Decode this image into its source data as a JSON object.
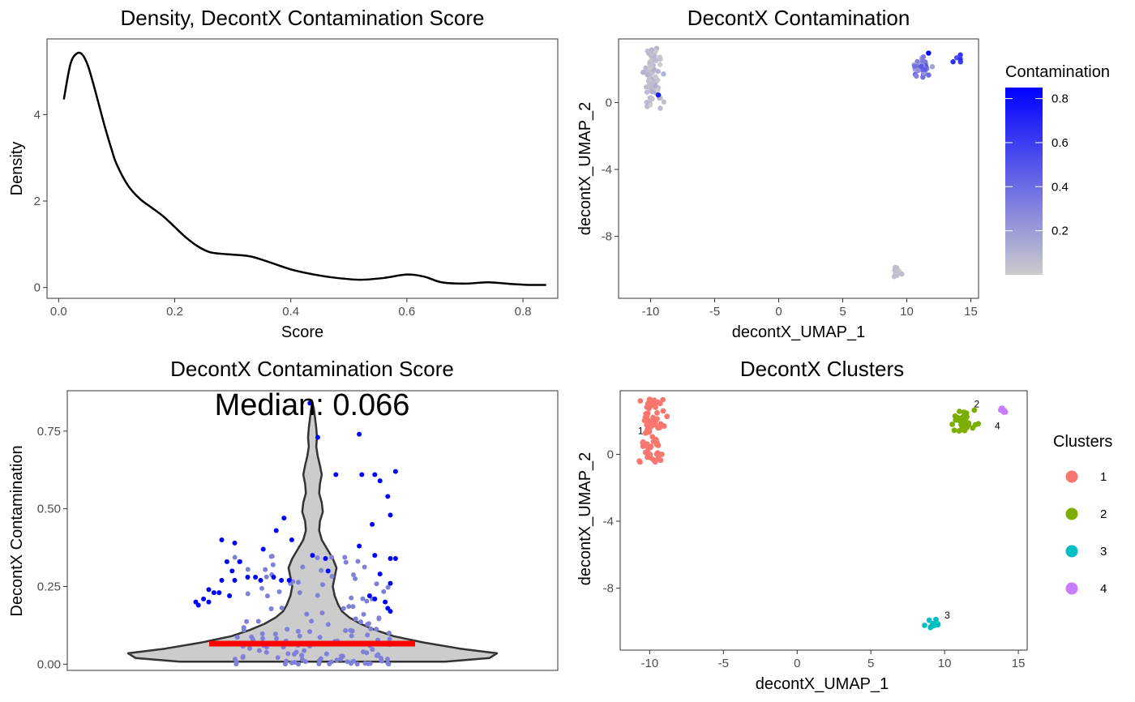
{
  "chart_data": [
    {
      "type": "line",
      "title": "Density, DecontX Contamination Score",
      "xlabel": "Score",
      "ylabel": "Density",
      "xlim": [
        -0.02,
        0.86
      ],
      "ylim": [
        -0.25,
        5.75
      ],
      "xticks": [
        0.0,
        0.2,
        0.4,
        0.6,
        0.8
      ],
      "xtick_labels": [
        "0.0",
        "0.2",
        "0.4",
        "0.6",
        "0.8"
      ],
      "yticks": [
        0,
        2,
        4
      ],
      "ytick_labels": [
        "0",
        "2",
        "4"
      ],
      "grid": false,
      "color": "#000000",
      "series": [
        {
          "x": [
            0.009,
            0.02,
            0.03,
            0.04,
            0.05,
            0.06,
            0.07,
            0.08,
            0.09,
            0.1,
            0.12,
            0.14,
            0.16,
            0.18,
            0.2,
            0.22,
            0.24,
            0.26,
            0.28,
            0.3,
            0.33,
            0.36,
            0.4,
            0.44,
            0.48,
            0.52,
            0.56,
            0.6,
            0.63,
            0.66,
            0.7,
            0.74,
            0.78,
            0.81,
            0.84
          ],
          "y": [
            4.35,
            5.15,
            5.4,
            5.4,
            5.15,
            4.7,
            4.2,
            3.7,
            3.25,
            2.85,
            2.35,
            2.05,
            1.85,
            1.65,
            1.4,
            1.15,
            0.95,
            0.82,
            0.78,
            0.76,
            0.72,
            0.6,
            0.42,
            0.3,
            0.22,
            0.18,
            0.22,
            0.3,
            0.25,
            0.12,
            0.09,
            0.12,
            0.08,
            0.06,
            0.06
          ]
        }
      ]
    },
    {
      "type": "scatter",
      "title": "DecontX Contamination",
      "xlabel": "decontX_UMAP_1",
      "ylabel": "decontX_UMAP_2",
      "xlim": [
        -12.5,
        15.6
      ],
      "ylim": [
        -11.7,
        3.8
      ],
      "xticks": [
        -10,
        -5,
        0,
        5,
        10,
        15
      ],
      "xtick_labels": [
        "-10",
        "-5",
        "0",
        "5",
        "10",
        "15"
      ],
      "yticks": [
        -8,
        -4,
        0
      ],
      "ytick_labels": [
        "-8",
        "-4",
        "0"
      ],
      "grid": false,
      "color_scale": {
        "low": "#cccccc",
        "high": "#0000ff",
        "min": 0.0,
        "max": 0.85
      },
      "legend": {
        "title": "Contamination",
        "position": "right",
        "ticks": [
          0.2,
          0.4,
          0.6,
          0.8
        ],
        "tick_labels": [
          "0.2",
          "0.4",
          "0.6",
          "0.8"
        ]
      },
      "clusters": [
        {
          "cx": -9.8,
          "cy": 2.1,
          "sx": 0.35,
          "sy": 0.55,
          "n": 80,
          "ymin": -0.5,
          "ymax": 3.3,
          "value_range": [
            0.0,
            0.12
          ],
          "extra": [
            [
              -9.4,
              0.45,
              0.75
            ]
          ]
        },
        {
          "cx": 11.2,
          "cy": 2.1,
          "sx": 0.35,
          "sy": 0.3,
          "n": 35,
          "value_range": [
            0.15,
            0.5
          ],
          "extra": [
            [
              11.7,
              2.95,
              0.85
            ]
          ]
        },
        {
          "cx": 14.0,
          "cy": 2.65,
          "sx": 0.18,
          "sy": 0.12,
          "n": 7,
          "value_range": [
            0.4,
            0.7
          ]
        },
        {
          "cx": 9.3,
          "cy": -10.15,
          "sx": 0.18,
          "sy": 0.15,
          "n": 14,
          "value_range": [
            0.0,
            0.08
          ]
        }
      ]
    },
    {
      "type": "violin",
      "title": "DecontX Contamination Score",
      "annotation": "Median: 0.066",
      "xlabel": "",
      "ylabel": "DecontX Contamination",
      "ylim": [
        -0.02,
        0.88
      ],
      "yticks": [
        0.0,
        0.25,
        0.5,
        0.75
      ],
      "ytick_labels": [
        "0.00",
        "0.25",
        "0.50",
        "0.75"
      ],
      "grid": false,
      "median": 0.066,
      "violin_fill": "#cccccc",
      "violin_stroke": "#333333",
      "median_color": "#ff0000",
      "violin_profile": {
        "y": [
          0.008,
          0.02,
          0.035,
          0.05,
          0.07,
          0.09,
          0.11,
          0.13,
          0.15,
          0.17,
          0.19,
          0.22,
          0.25,
          0.28,
          0.31,
          0.34,
          0.37,
          0.4,
          0.43,
          0.46,
          0.49,
          0.52,
          0.55,
          0.58,
          0.61,
          0.64,
          0.67,
          0.7,
          0.73,
          0.76,
          0.79,
          0.82,
          0.84
        ],
        "half_width": [
          0.36,
          0.48,
          0.5,
          0.4,
          0.3,
          0.22,
          0.17,
          0.13,
          0.1,
          0.08,
          0.07,
          0.06,
          0.055,
          0.06,
          0.065,
          0.055,
          0.04,
          0.025,
          0.018,
          0.02,
          0.028,
          0.025,
          0.018,
          0.02,
          0.025,
          0.02,
          0.014,
          0.01,
          0.012,
          0.01,
          0.007,
          0.004,
          0.0
        ]
      },
      "points_high_color": "#0000ff",
      "points_low_color": "#8080d8",
      "points_high": [
        [
          -0.35,
          0.4
        ],
        [
          -0.3,
          0.39
        ],
        [
          -0.33,
          0.33
        ],
        [
          -0.31,
          0.3
        ],
        [
          -0.28,
          0.33
        ],
        [
          -0.35,
          0.27
        ],
        [
          -0.3,
          0.27
        ],
        [
          -0.25,
          0.28
        ],
        [
          -0.22,
          0.28
        ],
        [
          -0.2,
          0.27
        ],
        [
          -0.15,
          0.28
        ],
        [
          -0.12,
          0.27
        ],
        [
          -0.09,
          0.27
        ],
        [
          -0.14,
          0.43
        ],
        [
          -0.19,
          0.37
        ],
        [
          -0.11,
          0.47
        ],
        [
          -0.08,
          0.4
        ],
        [
          -0.45,
          0.2
        ],
        [
          -0.44,
          0.19
        ],
        [
          -0.42,
          0.21
        ],
        [
          -0.38,
          0.23
        ],
        [
          -0.4,
          0.2
        ],
        [
          -0.36,
          0.23
        ],
        [
          -0.32,
          0.22
        ],
        [
          -0.4,
          0.24
        ],
        [
          0.02,
          0.73
        ],
        [
          0.09,
          0.61
        ],
        [
          0.19,
          0.61
        ],
        [
          0.24,
          0.61
        ],
        [
          0.26,
          0.59
        ],
        [
          0.32,
          0.62
        ],
        [
          0.29,
          0.54
        ],
        [
          0.3,
          0.48
        ],
        [
          0.23,
          0.45
        ],
        [
          0.18,
          0.38
        ],
        [
          0.24,
          0.35
        ],
        [
          0.3,
          0.34
        ],
        [
          0.32,
          0.34
        ],
        [
          0.26,
          0.29
        ],
        [
          0.3,
          0.26
        ],
        [
          0.22,
          0.22
        ],
        [
          0.24,
          0.21
        ],
        [
          0.28,
          0.2
        ],
        [
          0.3,
          0.17
        ],
        [
          -0.01,
          0.84
        ],
        [
          0.18,
          0.74
        ],
        [
          0.0,
          0.35
        ],
        [
          0.05,
          0.34
        ],
        [
          0.06,
          0.3
        ],
        [
          0.29,
          0.18
        ]
      ],
      "points_low_seed": 7,
      "points_low_count": 140,
      "colors": {
        "grey": "#cccccc",
        "blue": "#0000ff",
        "red": "#ff0000"
      }
    },
    {
      "type": "scatter",
      "title": "DecontX Clusters",
      "xlabel": "decontX_UMAP_1",
      "ylabel": "decontX_UMAP_2",
      "xlim": [
        -12.0,
        15.6
      ],
      "ylim": [
        -11.7,
        3.8
      ],
      "xticks": [
        -10,
        -5,
        0,
        5,
        10,
        15
      ],
      "xtick_labels": [
        "-10",
        "-5",
        "0",
        "5",
        "10",
        "15"
      ],
      "yticks": [
        -8,
        -4,
        0
      ],
      "ytick_labels": [
        "-8",
        "-4",
        "0"
      ],
      "grid": false,
      "legend": {
        "title": "Clusters",
        "position": "right",
        "entries": [
          {
            "label": "1",
            "color": "#f8766d"
          },
          {
            "label": "2",
            "color": "#7cae00"
          },
          {
            "label": "3",
            "color": "#00bfc4"
          },
          {
            "label": "4",
            "color": "#c77cff"
          }
        ]
      },
      "clusters": [
        {
          "label": "1",
          "cx": -9.8,
          "cy": 2.0,
          "sx": 0.38,
          "sy": 0.6,
          "n": 85,
          "ymin": -0.5,
          "ymax": 3.3,
          "label_pos": [
            -10.8,
            1.2
          ]
        },
        {
          "label": "2",
          "cx": 11.3,
          "cy": 2.0,
          "sx": 0.38,
          "sy": 0.3,
          "n": 38,
          "label_pos": [
            12.0,
            2.8
          ]
        },
        {
          "label": "3",
          "cx": 9.3,
          "cy": -10.15,
          "sx": 0.18,
          "sy": 0.15,
          "n": 14,
          "label_pos": [
            10.0,
            -9.8
          ]
        },
        {
          "label": "4",
          "cx": 14.0,
          "cy": 2.6,
          "sx": 0.18,
          "sy": 0.12,
          "n": 7,
          "label_pos": [
            13.4,
            1.5
          ]
        }
      ]
    }
  ]
}
